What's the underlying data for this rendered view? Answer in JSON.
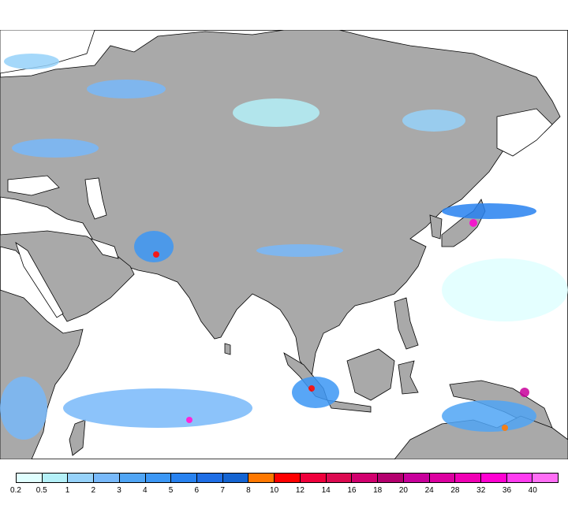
{
  "colorbar": {
    "labels": [
      "0.2",
      "0.5",
      "1",
      "2",
      "3",
      "4",
      "5",
      "6",
      "7",
      "8",
      "10",
      "12",
      "14",
      "16",
      "18",
      "20",
      "24",
      "28",
      "32",
      "36",
      "40"
    ],
    "colors": [
      "#e0ffff",
      "#b4f0f8",
      "#96d2fa",
      "#78b9fa",
      "#50a5f5",
      "#3c97f5",
      "#2882f0",
      "#1e6ee6",
      "#1464d2",
      "#ff7800",
      "#ff0000",
      "#f0003c",
      "#dc0a50",
      "#d2006e",
      "#b4006e",
      "#c8009b",
      "#dc00a0",
      "#f000b4",
      "#ff00d2",
      "#ff3cf0",
      "#ff6ef5"
    ]
  },
  "map": {
    "land_color": "#a9a9a9",
    "ocean_color": "#ffffff",
    "border_color": "#000000"
  }
}
